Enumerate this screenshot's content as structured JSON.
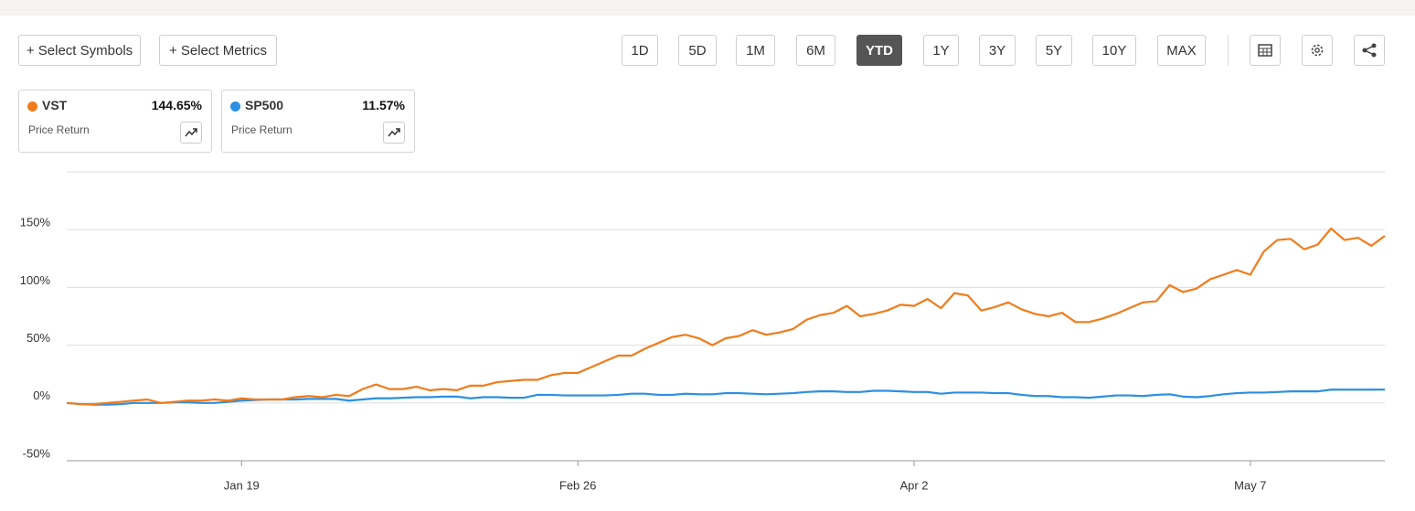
{
  "toolbar": {
    "select_symbols": "+ Select Symbols",
    "select_metrics": "+ Select Metrics",
    "periods": [
      "1D",
      "5D",
      "1M",
      "6M",
      "YTD",
      "1Y",
      "3Y",
      "5Y",
      "10Y",
      "MAX"
    ],
    "active_period": 4
  },
  "cards": [
    {
      "return": "144.65%",
      "metric": "Price Return"
    },
    {
      "return": "11.57%",
      "metric": "Price Return"
    }
  ],
  "chart_data": {
    "type": "line",
    "categories": [
      null,
      null,
      null,
      null,
      null,
      null,
      null,
      null,
      null,
      null,
      null,
      null,
      null,
      "Jan 19",
      null,
      null,
      null,
      null,
      null,
      null,
      null,
      null,
      null,
      null,
      null,
      null,
      null,
      null,
      null,
      null,
      null,
      null,
      null,
      null,
      null,
      null,
      null,
      null,
      "Feb 26",
      null,
      null,
      null,
      null,
      null,
      null,
      null,
      null,
      null,
      null,
      null,
      null,
      null,
      null,
      null,
      null,
      null,
      null,
      null,
      null,
      null,
      null,
      null,
      null,
      "Apr 2",
      null,
      null,
      null,
      null,
      null,
      null,
      null,
      null,
      null,
      null,
      null,
      null,
      null,
      null,
      null,
      null,
      null,
      null,
      null,
      null,
      null,
      null,
      null,
      null,
      "May 7",
      null,
      null,
      null,
      null,
      null,
      null,
      null,
      null,
      null,
      null
    ],
    "series": [
      {
        "name": "VST",
        "color": "#f07c1c",
        "values": [
          0,
          -1,
          -1,
          0,
          1,
          2,
          3,
          0,
          1,
          2,
          2,
          3,
          2,
          4,
          3,
          3,
          3,
          5,
          6,
          5,
          7,
          6,
          12,
          16,
          12,
          12,
          14,
          11,
          12,
          11,
          15,
          15,
          18,
          19,
          20,
          20,
          24,
          26,
          26,
          31,
          36,
          41,
          41,
          47,
          52,
          57,
          59,
          56,
          50,
          56,
          58,
          63,
          59,
          61,
          64,
          72,
          76,
          78,
          84,
          75,
          77,
          80,
          85,
          84,
          90,
          82,
          95,
          93,
          80,
          83,
          87,
          81,
          77,
          75,
          78,
          70,
          70,
          73,
          77,
          82,
          87,
          88,
          102,
          96,
          99,
          107,
          111,
          115,
          111,
          131,
          141,
          142,
          133,
          137,
          151,
          141,
          143,
          136,
          144.65
        ]
      },
      {
        "name": "SP500",
        "color": "#2b8fe3",
        "values": [
          0,
          -1,
          -1.5,
          -1.5,
          -1,
          0,
          0,
          0,
          0.5,
          0.5,
          0,
          0,
          1,
          2,
          2.5,
          3,
          3,
          3,
          3.5,
          3.5,
          3.5,
          2,
          3,
          4,
          4,
          4.5,
          5,
          5,
          5.5,
          5.5,
          4,
          5,
          5,
          4.5,
          4.5,
          7,
          7,
          6.5,
          6.5,
          6.5,
          6.5,
          7,
          8,
          8,
          7,
          7,
          8,
          7.5,
          7.5,
          8.5,
          8.5,
          8,
          7.5,
          8,
          8.5,
          9.5,
          10,
          10,
          9.5,
          9.5,
          10.5,
          10.5,
          10,
          9.5,
          9.5,
          8,
          9,
          9,
          9,
          8.5,
          8.5,
          7,
          6,
          6,
          5,
          5,
          4.5,
          5.5,
          6.5,
          6.5,
          6,
          7,
          7.5,
          5.5,
          5,
          6,
          7.5,
          8.5,
          9,
          9,
          9.5,
          10,
          10,
          10,
          11.5,
          11.5,
          11.5,
          11.5,
          11.57
        ]
      }
    ],
    "ylim": [
      -50,
      200
    ],
    "yticks": [
      {
        "value": -50,
        "label": "-50%"
      },
      {
        "value": 0,
        "label": "0%"
      },
      {
        "value": 50,
        "label": "50%"
      },
      {
        "value": 100,
        "label": "100%"
      },
      {
        "value": 150,
        "label": "150%"
      }
    ],
    "grid": true
  }
}
